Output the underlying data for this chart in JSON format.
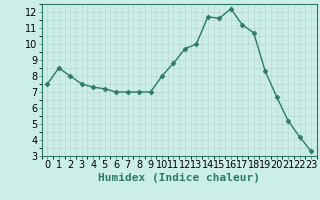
{
  "x": [
    0,
    1,
    2,
    3,
    4,
    5,
    6,
    7,
    8,
    9,
    10,
    11,
    12,
    13,
    14,
    15,
    16,
    17,
    18,
    19,
    20,
    21,
    22,
    23
  ],
  "y": [
    7.5,
    8.5,
    8.0,
    7.5,
    7.3,
    7.2,
    7.0,
    7.0,
    7.0,
    7.0,
    8.0,
    8.8,
    9.7,
    10.0,
    11.7,
    11.6,
    12.2,
    11.2,
    10.7,
    8.3,
    6.7,
    5.2,
    4.2,
    3.3
  ],
  "xlabel": "Humidex (Indice chaleur)",
  "xlim": [
    -0.5,
    23.5
  ],
  "ylim": [
    3,
    12.5
  ],
  "yticks": [
    3,
    4,
    5,
    6,
    7,
    8,
    9,
    10,
    11,
    12
  ],
  "xticks": [
    0,
    1,
    2,
    3,
    4,
    5,
    6,
    7,
    8,
    9,
    10,
    11,
    12,
    13,
    14,
    15,
    16,
    17,
    18,
    19,
    20,
    21,
    22,
    23
  ],
  "line_color": "#2d7a6a",
  "marker": "D",
  "marker_size": 2.5,
  "bg_color": "#cceee8",
  "grid_major_color": "#b8d8d0",
  "grid_minor_color": "#c8e4de",
  "xlabel_fontsize": 8,
  "tick_fontsize": 7,
  "linewidth": 1.0
}
